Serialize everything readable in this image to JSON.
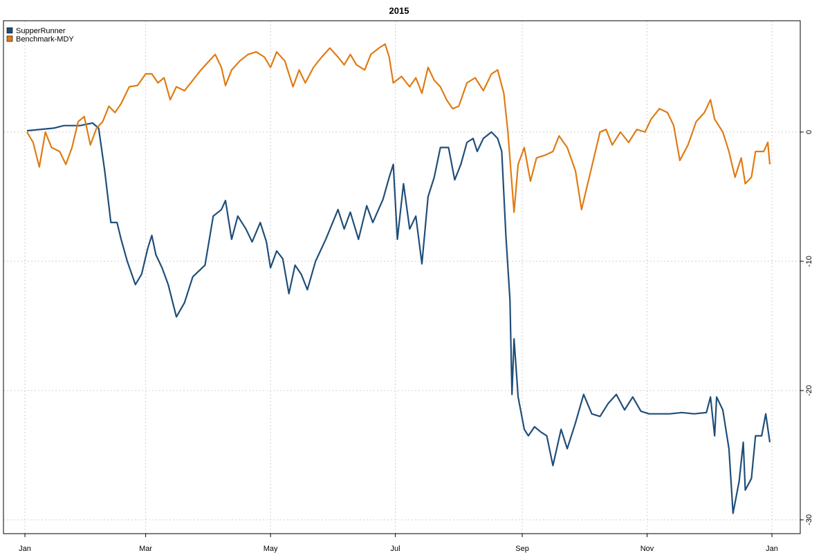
{
  "chart_data": {
    "type": "line",
    "title": "2015",
    "xlabel": "",
    "ylabel": "",
    "x_ticks": [
      "Jan",
      "Mar",
      "May",
      "Jul",
      "Sep",
      "Nov",
      "Jan"
    ],
    "y_ticks": [
      0,
      -10,
      -20,
      -30
    ],
    "ylim": [
      -31,
      8.7
    ],
    "xlim": [
      "2015-01-02",
      "2016-01-01"
    ],
    "grid": true,
    "legend": "top-left",
    "series": [
      {
        "name": "SupperRunner",
        "color": "#1F4E79",
        "points": [
          [
            "2015-01-02",
            0.1
          ],
          [
            "2015-01-15",
            0.3
          ],
          [
            "2015-01-20",
            0.5
          ],
          [
            "2015-01-28",
            0.5
          ],
          [
            "2015-02-03",
            0.7
          ],
          [
            "2015-02-06",
            0.3
          ],
          [
            "2015-02-09",
            -3.0
          ],
          [
            "2015-02-12",
            -7.0
          ],
          [
            "2015-02-15",
            -7.0
          ],
          [
            "2015-02-17",
            -8.3
          ],
          [
            "2015-02-20",
            -10.0
          ],
          [
            "2015-02-24",
            -11.8
          ],
          [
            "2015-02-27",
            -11.0
          ],
          [
            "2015-03-02",
            -9.0
          ],
          [
            "2015-03-04",
            -8.0
          ],
          [
            "2015-03-06",
            -9.5
          ],
          [
            "2015-03-09",
            -10.5
          ],
          [
            "2015-03-12",
            -11.8
          ],
          [
            "2015-03-16",
            -14.3
          ],
          [
            "2015-03-20",
            -13.2
          ],
          [
            "2015-03-24",
            -11.2
          ],
          [
            "2015-03-30",
            -10.3
          ],
          [
            "2015-04-03",
            -6.5
          ],
          [
            "2015-04-07",
            -6.0
          ],
          [
            "2015-04-09",
            -5.3
          ],
          [
            "2015-04-12",
            -8.3
          ],
          [
            "2015-04-15",
            -6.5
          ],
          [
            "2015-04-19",
            -7.5
          ],
          [
            "2015-04-22",
            -8.5
          ],
          [
            "2015-04-26",
            -7.0
          ],
          [
            "2015-04-29",
            -8.5
          ],
          [
            "2015-05-01",
            -10.5
          ],
          [
            "2015-05-04",
            -9.2
          ],
          [
            "2015-05-07",
            -9.8
          ],
          [
            "2015-05-10",
            -12.5
          ],
          [
            "2015-05-13",
            -10.3
          ],
          [
            "2015-05-16",
            -11.0
          ],
          [
            "2015-05-19",
            -12.2
          ],
          [
            "2015-05-23",
            -10.0
          ],
          [
            "2015-05-28",
            -8.3
          ],
          [
            "2015-06-03",
            -6.0
          ],
          [
            "2015-06-06",
            -7.5
          ],
          [
            "2015-06-09",
            -6.2
          ],
          [
            "2015-06-13",
            -8.3
          ],
          [
            "2015-06-17",
            -5.7
          ],
          [
            "2015-06-20",
            -7.0
          ],
          [
            "2015-06-25",
            -5.2
          ],
          [
            "2015-06-28",
            -3.5
          ],
          [
            "2015-06-30",
            -2.5
          ],
          [
            "2015-07-02",
            -8.3
          ],
          [
            "2015-07-05",
            -4.0
          ],
          [
            "2015-07-08",
            -7.5
          ],
          [
            "2015-07-11",
            -6.5
          ],
          [
            "2015-07-14",
            -10.2
          ],
          [
            "2015-07-17",
            -5.0
          ],
          [
            "2015-07-20",
            -3.5
          ],
          [
            "2015-07-23",
            -1.2
          ],
          [
            "2015-07-27",
            -1.2
          ],
          [
            "2015-07-30",
            -3.7
          ],
          [
            "2015-08-02",
            -2.5
          ],
          [
            "2015-08-05",
            -0.8
          ],
          [
            "2015-08-08",
            -0.5
          ],
          [
            "2015-08-10",
            -1.5
          ],
          [
            "2015-08-13",
            -0.5
          ],
          [
            "2015-08-17",
            0.0
          ],
          [
            "2015-08-20",
            -0.5
          ],
          [
            "2015-08-22",
            -1.5
          ],
          [
            "2015-08-24",
            -8.0
          ],
          [
            "2015-08-26",
            -13.0
          ],
          [
            "2015-08-27",
            -20.3
          ],
          [
            "2015-08-28",
            -16.0
          ],
          [
            "2015-08-30",
            -20.5
          ],
          [
            "2015-09-02",
            -23.0
          ],
          [
            "2015-09-04",
            -23.5
          ],
          [
            "2015-09-07",
            -22.8
          ],
          [
            "2015-09-10",
            -23.2
          ],
          [
            "2015-09-13",
            -23.5
          ],
          [
            "2015-09-16",
            -25.8
          ],
          [
            "2015-09-20",
            -23.0
          ],
          [
            "2015-09-23",
            -24.5
          ],
          [
            "2015-09-27",
            -22.5
          ],
          [
            "2015-10-01",
            -20.3
          ],
          [
            "2015-10-05",
            -21.8
          ],
          [
            "2015-10-09",
            -22.0
          ],
          [
            "2015-10-13",
            -21.0
          ],
          [
            "2015-10-17",
            -20.3
          ],
          [
            "2015-10-21",
            -21.5
          ],
          [
            "2015-10-25",
            -20.5
          ],
          [
            "2015-10-29",
            -21.6
          ],
          [
            "2015-11-02",
            -21.8
          ],
          [
            "2015-11-06",
            -21.8
          ],
          [
            "2015-11-12",
            -21.8
          ],
          [
            "2015-11-18",
            -21.7
          ],
          [
            "2015-11-24",
            -21.8
          ],
          [
            "2015-11-30",
            -21.7
          ],
          [
            "2015-12-02",
            -20.5
          ],
          [
            "2015-12-04",
            -23.5
          ],
          [
            "2015-12-05",
            -20.5
          ],
          [
            "2015-12-08",
            -21.5
          ],
          [
            "2015-12-11",
            -24.5
          ],
          [
            "2015-12-13",
            -29.5
          ],
          [
            "2015-12-16",
            -27.0
          ],
          [
            "2015-12-18",
            -24.0
          ],
          [
            "2015-12-19",
            -27.7
          ],
          [
            "2015-12-22",
            -26.8
          ],
          [
            "2015-12-24",
            -23.5
          ],
          [
            "2015-12-27",
            -23.5
          ],
          [
            "2015-12-29",
            -21.8
          ],
          [
            "2015-12-31",
            -24.0
          ]
        ]
      },
      {
        "name": "Benchmark-MDY",
        "color": "#E07B12",
        "points": [
          [
            "2015-01-02",
            0.0
          ],
          [
            "2015-01-05",
            -0.8
          ],
          [
            "2015-01-08",
            -2.7
          ],
          [
            "2015-01-11",
            0.0
          ],
          [
            "2015-01-14",
            -1.2
          ],
          [
            "2015-01-18",
            -1.5
          ],
          [
            "2015-01-21",
            -2.5
          ],
          [
            "2015-01-24",
            -1.2
          ],
          [
            "2015-01-27",
            0.8
          ],
          [
            "2015-01-30",
            1.2
          ],
          [
            "2015-02-02",
            -1.0
          ],
          [
            "2015-02-05",
            0.3
          ],
          [
            "2015-02-08",
            0.8
          ],
          [
            "2015-02-11",
            2.0
          ],
          [
            "2015-02-14",
            1.5
          ],
          [
            "2015-02-17",
            2.2
          ],
          [
            "2015-02-21",
            3.5
          ],
          [
            "2015-02-25",
            3.6
          ],
          [
            "2015-03-01",
            4.5
          ],
          [
            "2015-03-04",
            4.5
          ],
          [
            "2015-03-07",
            3.8
          ],
          [
            "2015-03-10",
            4.2
          ],
          [
            "2015-03-13",
            2.5
          ],
          [
            "2015-03-16",
            3.5
          ],
          [
            "2015-03-20",
            3.2
          ],
          [
            "2015-03-24",
            4.0
          ],
          [
            "2015-03-28",
            4.8
          ],
          [
            "2015-04-01",
            5.5
          ],
          [
            "2015-04-04",
            6.0
          ],
          [
            "2015-04-07",
            5.0
          ],
          [
            "2015-04-09",
            3.6
          ],
          [
            "2015-04-12",
            4.8
          ],
          [
            "2015-04-16",
            5.5
          ],
          [
            "2015-04-20",
            6.0
          ],
          [
            "2015-04-24",
            6.2
          ],
          [
            "2015-04-28",
            5.8
          ],
          [
            "2015-05-01",
            5.0
          ],
          [
            "2015-05-04",
            6.2
          ],
          [
            "2015-05-08",
            5.5
          ],
          [
            "2015-05-12",
            3.5
          ],
          [
            "2015-05-15",
            4.8
          ],
          [
            "2015-05-18",
            3.8
          ],
          [
            "2015-05-22",
            5.0
          ],
          [
            "2015-05-26",
            5.8
          ],
          [
            "2015-05-30",
            6.5
          ],
          [
            "2015-06-03",
            5.8
          ],
          [
            "2015-06-06",
            5.2
          ],
          [
            "2015-06-09",
            6.0
          ],
          [
            "2015-06-12",
            5.2
          ],
          [
            "2015-06-16",
            4.8
          ],
          [
            "2015-06-19",
            6.0
          ],
          [
            "2015-06-23",
            6.5
          ],
          [
            "2015-06-26",
            6.8
          ],
          [
            "2015-06-28",
            5.8
          ],
          [
            "2015-06-30",
            3.8
          ],
          [
            "2015-07-04",
            4.3
          ],
          [
            "2015-07-08",
            3.5
          ],
          [
            "2015-07-11",
            4.2
          ],
          [
            "2015-07-14",
            3.0
          ],
          [
            "2015-07-17",
            5.0
          ],
          [
            "2015-07-20",
            4.0
          ],
          [
            "2015-07-23",
            3.5
          ],
          [
            "2015-07-26",
            2.5
          ],
          [
            "2015-07-29",
            1.8
          ],
          [
            "2015-08-01",
            2.0
          ],
          [
            "2015-08-05",
            3.8
          ],
          [
            "2015-08-09",
            4.2
          ],
          [
            "2015-08-13",
            3.2
          ],
          [
            "2015-08-17",
            4.5
          ],
          [
            "2015-08-20",
            4.8
          ],
          [
            "2015-08-23",
            3.0
          ],
          [
            "2015-08-25",
            0.0
          ],
          [
            "2015-08-28",
            -6.2
          ],
          [
            "2015-08-30",
            -2.5
          ],
          [
            "2015-09-02",
            -1.2
          ],
          [
            "2015-09-05",
            -3.8
          ],
          [
            "2015-09-08",
            -2.0
          ],
          [
            "2015-09-12",
            -1.8
          ],
          [
            "2015-09-16",
            -1.5
          ],
          [
            "2015-09-19",
            -0.3
          ],
          [
            "2015-09-23",
            -1.2
          ],
          [
            "2015-09-27",
            -3.0
          ],
          [
            "2015-09-30",
            -6.0
          ],
          [
            "2015-10-03",
            -4.0
          ],
          [
            "2015-10-06",
            -2.0
          ],
          [
            "2015-10-09",
            0.0
          ],
          [
            "2015-10-12",
            0.2
          ],
          [
            "2015-10-15",
            -1.0
          ],
          [
            "2015-10-19",
            0.0
          ],
          [
            "2015-10-23",
            -0.8
          ],
          [
            "2015-10-27",
            0.2
          ],
          [
            "2015-10-31",
            0.0
          ],
          [
            "2015-11-03",
            1.0
          ],
          [
            "2015-11-07",
            1.8
          ],
          [
            "2015-11-11",
            1.5
          ],
          [
            "2015-11-14",
            0.5
          ],
          [
            "2015-11-17",
            -2.2
          ],
          [
            "2015-11-21",
            -1.0
          ],
          [
            "2015-11-25",
            0.8
          ],
          [
            "2015-11-29",
            1.5
          ],
          [
            "2015-12-02",
            2.5
          ],
          [
            "2015-12-04",
            1.0
          ],
          [
            "2015-12-08",
            0.0
          ],
          [
            "2015-12-11",
            -1.5
          ],
          [
            "2015-12-14",
            -3.5
          ],
          [
            "2015-12-17",
            -2.0
          ],
          [
            "2015-12-19",
            -4.0
          ],
          [
            "2015-12-22",
            -3.5
          ],
          [
            "2015-12-24",
            -1.5
          ],
          [
            "2015-12-28",
            -1.5
          ],
          [
            "2015-12-30",
            -0.8
          ],
          [
            "2015-12-31",
            -2.5
          ]
        ]
      }
    ]
  }
}
